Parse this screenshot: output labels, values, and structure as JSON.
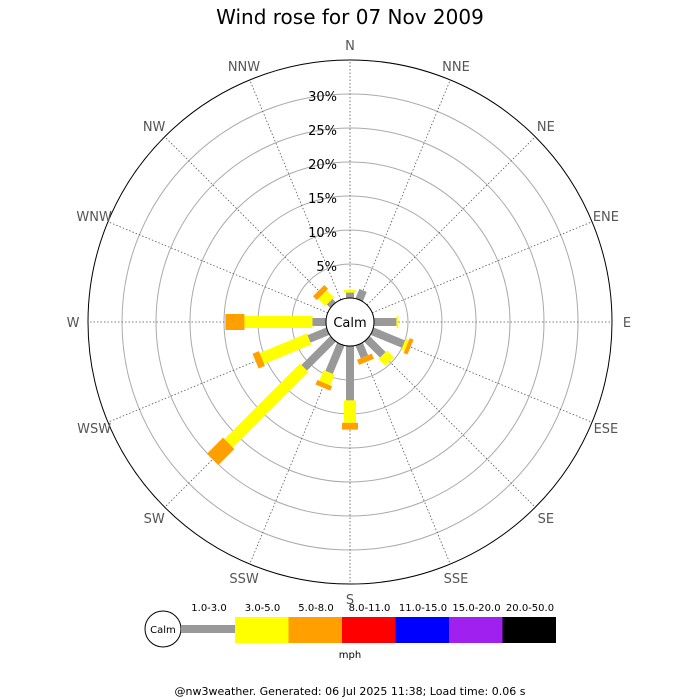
{
  "chart_data": {
    "type": "wind-rose",
    "title": "Wind rose for 07 Nov 2009",
    "directions": [
      "N",
      "NNE",
      "NE",
      "ENE",
      "E",
      "ESE",
      "SE",
      "SSE",
      "S",
      "SSW",
      "SW",
      "WSW",
      "W",
      "WNW",
      "NW",
      "NNW"
    ],
    "ring_labels": [
      "5%",
      "10%",
      "15%",
      "20%",
      "25%",
      "30%"
    ],
    "ring_values": [
      5,
      10,
      15,
      20,
      25,
      30
    ],
    "r_max": 35,
    "calm_label": "Calm",
    "speed_bins": [
      "1.0-3.0",
      "3.0-5.0",
      "5.0-8.0",
      "8.0-11.0",
      "11.0-15.0",
      "15.0-20.0",
      "20.0-50.0"
    ],
    "bin_colors": [
      "#999999",
      "#ffff00",
      "#ffa000",
      "#ff0000",
      "#0000ff",
      "#a020f0",
      "#000000"
    ],
    "units": "mph",
    "series": [
      {
        "direction": "N",
        "values": [
          0.8,
          0.4,
          0,
          0,
          0,
          0,
          0
        ]
      },
      {
        "direction": "NNE",
        "values": [
          1.5,
          0,
          0,
          0,
          0,
          0,
          0
        ]
      },
      {
        "direction": "NE",
        "values": [
          0,
          0,
          0,
          0,
          0,
          0,
          0
        ]
      },
      {
        "direction": "ENE",
        "values": [
          0,
          0,
          0,
          0,
          0,
          0,
          0
        ]
      },
      {
        "direction": "E",
        "values": [
          3.3,
          0.3,
          0,
          0,
          0,
          0,
          0
        ]
      },
      {
        "direction": "ESE",
        "values": [
          5.0,
          0.5,
          0.6,
          0,
          0,
          0,
          0
        ]
      },
      {
        "direction": "SE",
        "values": [
          3.3,
          1.4,
          0,
          0,
          0,
          0,
          0
        ]
      },
      {
        "direction": "SSE",
        "values": [
          2.0,
          0,
          0.8,
          0,
          0,
          0,
          0
        ]
      },
      {
        "direction": "S",
        "values": [
          8.0,
          3.3,
          1.0,
          0,
          0,
          0,
          0
        ]
      },
      {
        "direction": "SSW",
        "values": [
          4.5,
          1.7,
          0.7,
          0,
          0,
          0,
          0
        ]
      },
      {
        "direction": "SW",
        "values": [
          6.0,
          15.7,
          3.3,
          0,
          0,
          0,
          0
        ]
      },
      {
        "direction": "WSW",
        "values": [
          3.0,
          7.5,
          1.0,
          0,
          0,
          0,
          0
        ]
      },
      {
        "direction": "W",
        "values": [
          2.0,
          10.0,
          2.8,
          0,
          0,
          0,
          0
        ]
      },
      {
        "direction": "WNW",
        "values": [
          0,
          0,
          0,
          0,
          0,
          0,
          0
        ]
      },
      {
        "direction": "NW",
        "values": [
          0.7,
          1.5,
          0.8,
          0,
          0,
          0,
          0
        ]
      },
      {
        "direction": "NNW",
        "values": [
          0,
          0,
          0,
          0,
          0,
          0,
          0
        ]
      }
    ]
  },
  "footer": "@nw3weather. Generated: 06 Jul 2025 11:38; Load time: 0.06 s"
}
